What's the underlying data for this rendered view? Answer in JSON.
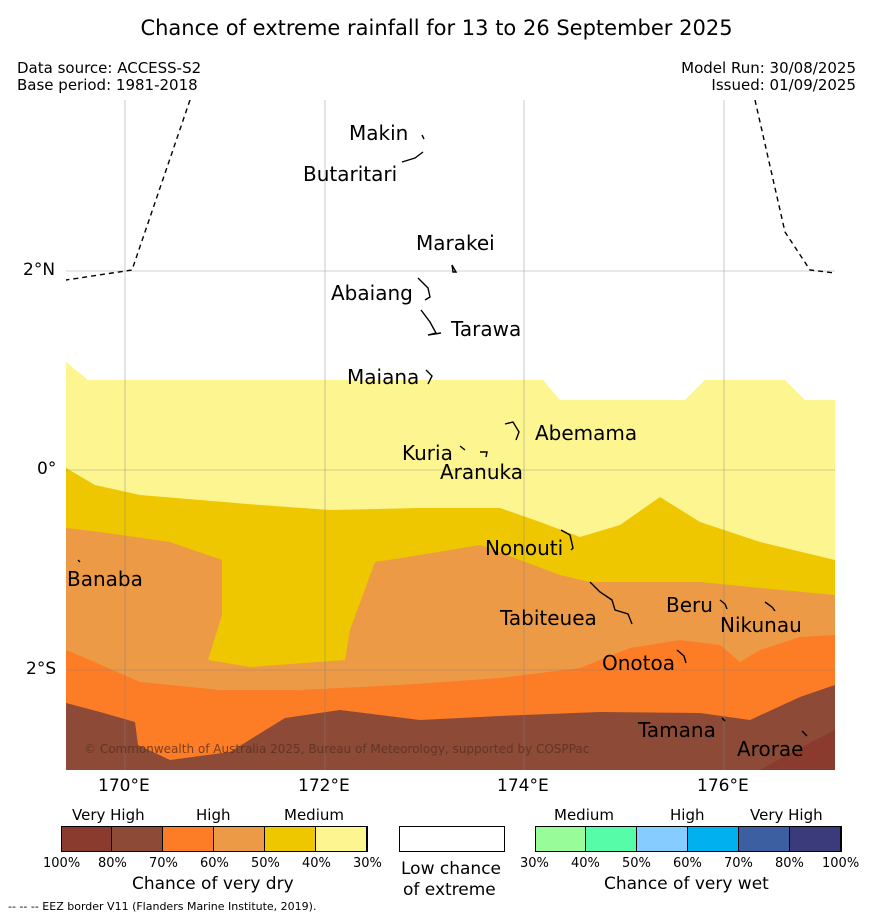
{
  "title": "Chance of extreme rainfall for 13 to 26 September 2025",
  "header": {
    "data_source": "Data source: ACCESS-S2",
    "base_period": "Base period: 1981-2018",
    "model_run": "Model Run: 30/08/2025",
    "issued": "Issued: 01/09/2025"
  },
  "axes": {
    "y_ticks": [
      "2°N",
      "0°",
      "2°S"
    ],
    "x_ticks": [
      "170°E",
      "172°E",
      "174°E",
      "176°E"
    ],
    "gridlines": true
  },
  "islands": [
    {
      "name": "Makin"
    },
    {
      "name": "Butaritari"
    },
    {
      "name": "Marakei"
    },
    {
      "name": "Abaiang"
    },
    {
      "name": "Tarawa"
    },
    {
      "name": "Maiana"
    },
    {
      "name": "Abemama"
    },
    {
      "name": "Kuria"
    },
    {
      "name": "Aranuka"
    },
    {
      "name": "Nonouti"
    },
    {
      "name": "Banaba"
    },
    {
      "name": "Tabiteuea"
    },
    {
      "name": "Beru"
    },
    {
      "name": "Nikunau"
    },
    {
      "name": "Onotoa"
    },
    {
      "name": "Tamana"
    },
    {
      "name": "Arorae"
    }
  ],
  "copyright": "© Commonwealth of Australia 2025, Bureau of Meteorology, supported by COSPPac",
  "legend": {
    "dry": {
      "headers": [
        "Very High",
        "High",
        "Medium"
      ],
      "ticks": [
        "100%",
        "80%",
        "70%",
        "60%",
        "50%",
        "40%",
        "30%"
      ],
      "colors": [
        "#8b3a2e",
        "#8c4a37",
        "#fd7c26",
        "#ec9a46",
        "#eec700",
        "#fdf58f"
      ],
      "title": "Chance of very dry"
    },
    "low": {
      "title_line1": "Low chance",
      "title_line2": "of extreme",
      "color": "#ffffff"
    },
    "wet": {
      "headers": [
        "Medium",
        "High",
        "Very High"
      ],
      "ticks": [
        "30%",
        "40%",
        "50%",
        "60%",
        "70%",
        "80%",
        "100%"
      ],
      "colors": [
        "#98fd98",
        "#56fca7",
        "#86ccfe",
        "#00b0ef",
        "#3b5fa0",
        "#3b3a7b"
      ],
      "title": "Chance of very wet"
    }
  },
  "footnote": "--  --  -- EEZ border V11 (Flanders Marine Institute, 2019)."
}
